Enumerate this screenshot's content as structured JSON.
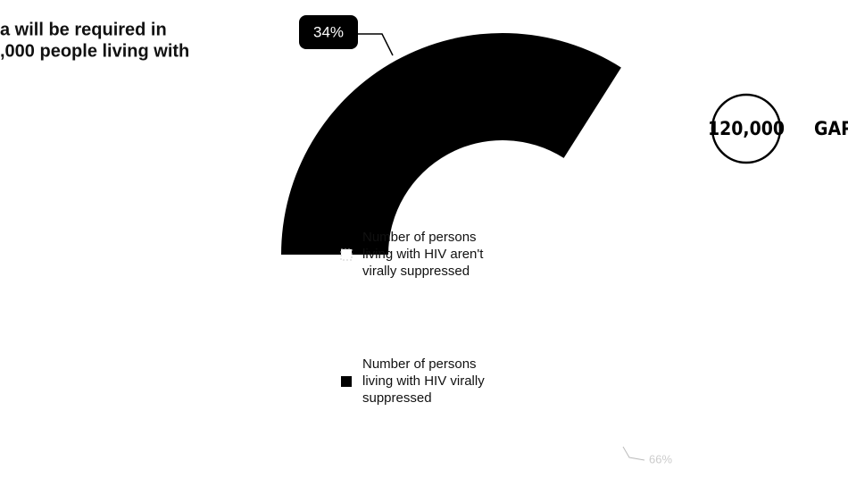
{
  "intro_lines": [
    "a will be required in",
    ",000 people living with"
  ],
  "chart_data": {
    "type": "pie",
    "donut": true,
    "categories": [
      "Number of persons living with HIV aren't virally suppressed",
      "Number of persons living with HIV virally suppressed"
    ],
    "legend_lines": [
      [
        "Number of persons",
        "living with HIV aren't",
        "virally suppressed"
      ],
      [
        "Number of persons",
        "living with HIV virally",
        "suppressed"
      ]
    ],
    "values": [
      66,
      34
    ],
    "value_labels": [
      "66%",
      "34%"
    ],
    "colors": [
      "#ffffff",
      "#000000"
    ],
    "gap_value": "120,000",
    "gap_label": "GAP"
  }
}
